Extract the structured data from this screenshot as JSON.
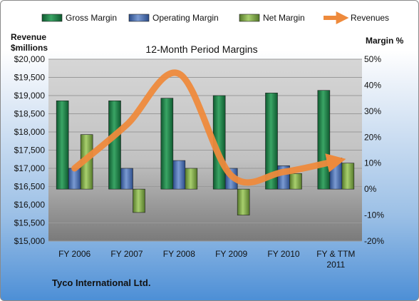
{
  "chart_data": {
    "type": "bar",
    "title": "12-Month Period Margins",
    "company": "Tyco International Ltd.",
    "left_axis_label": [
      "Revenue",
      "$millions"
    ],
    "right_axis_label": "Margin %",
    "categories": [
      "FY 2006",
      "FY 2007",
      "FY 2008",
      "FY 2009",
      "FY 2010",
      "FY & TTM\n2011"
    ],
    "left_axis": {
      "min": 15000,
      "max": 20000,
      "step": 500
    },
    "right_axis": {
      "min": -20,
      "max": 50,
      "step": 10
    },
    "left_ticks": [
      "$15,000",
      "$15,500",
      "$16,000",
      "$16,500",
      "$17,000",
      "$17,500",
      "$18,000",
      "$18,500",
      "$19,000",
      "$19,500",
      "$20,000"
    ],
    "right_ticks": [
      "-20%",
      "-10%",
      "0%",
      "10%",
      "20%",
      "30%",
      "40%",
      "50%"
    ],
    "series": [
      {
        "name": "Gross Margin",
        "axis": "right",
        "color": "#1f7a45",
        "values": [
          34,
          34,
          35,
          36,
          37,
          38
        ]
      },
      {
        "name": "Operating Margin",
        "axis": "right",
        "color": "#4a6fb0",
        "values": [
          8,
          8,
          11,
          8,
          9,
          12
        ]
      },
      {
        "name": "Net Margin",
        "axis": "right",
        "color": "#7fa83f",
        "values": [
          21,
          -9,
          8,
          -10,
          6,
          10
        ]
      },
      {
        "name": "Revenues",
        "axis": "left",
        "type": "line",
        "color": "#ee8a3c",
        "values": [
          17000,
          18200,
          19600,
          16800,
          16900,
          17200
        ]
      }
    ],
    "grid": true,
    "legend": "top"
  }
}
